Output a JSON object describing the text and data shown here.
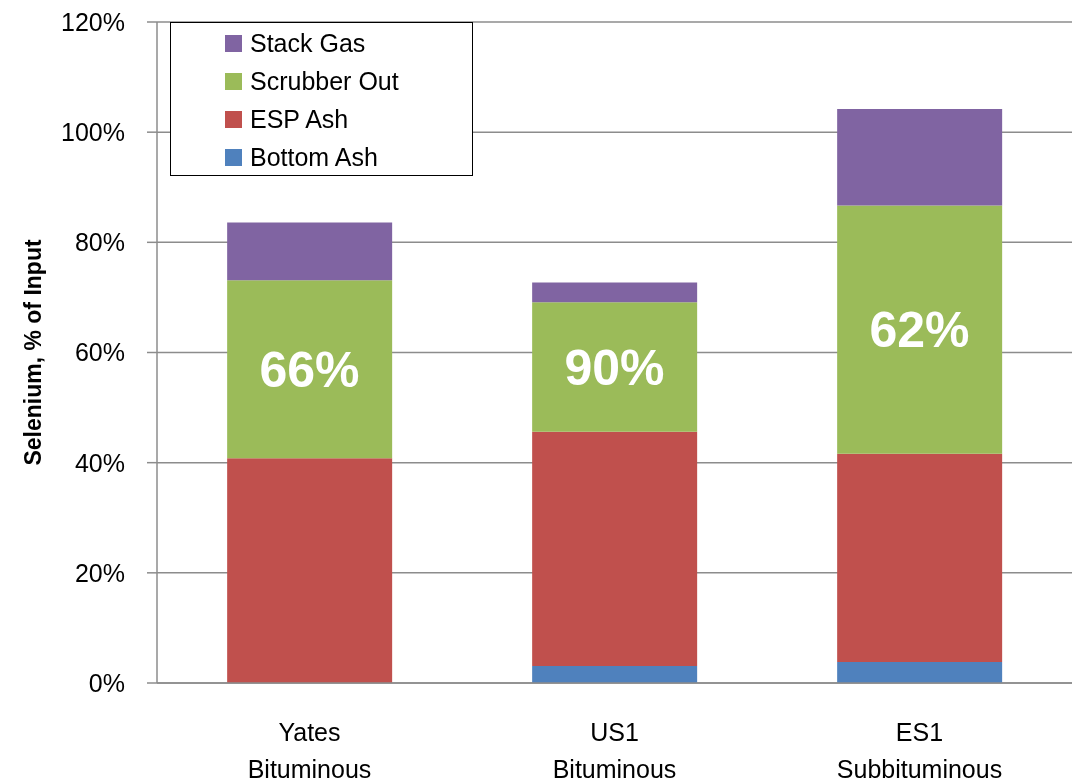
{
  "chart_data": {
    "type": "bar",
    "stacked": true,
    "ylabel": "Selenium, % of Input",
    "categories": [
      "Yates\nBituminous",
      "US1\nBituminous",
      "ES1\nSubbituminous"
    ],
    "series": [
      {
        "name": "Bottom Ash",
        "color": "#4f81bd",
        "values": [
          0,
          3.1,
          3.8
        ]
      },
      {
        "name": "ESP Ash",
        "color": "#c0504d",
        "values": [
          40.8,
          42.5,
          37.8
        ]
      },
      {
        "name": "Scrubber Out",
        "color": "#9bbb59",
        "values": [
          32.3,
          23.5,
          45.1
        ]
      },
      {
        "name": "Stack Gas",
        "color": "#8064a2",
        "values": [
          10.5,
          3.6,
          17.5
        ]
      }
    ],
    "ylim": [
      0,
      120
    ],
    "yticks": [
      {
        "value": 0,
        "label": "0%"
      },
      {
        "value": 20,
        "label": "20%"
      },
      {
        "value": 40,
        "label": "40%"
      },
      {
        "value": 60,
        "label": "60%"
      },
      {
        "value": 80,
        "label": "80%"
      },
      {
        "value": 100,
        "label": "100%"
      },
      {
        "value": 120,
        "label": "120%"
      }
    ],
    "grid": "y",
    "legend": "top left",
    "annotations": [
      "66%",
      "90%",
      "62%"
    ]
  }
}
